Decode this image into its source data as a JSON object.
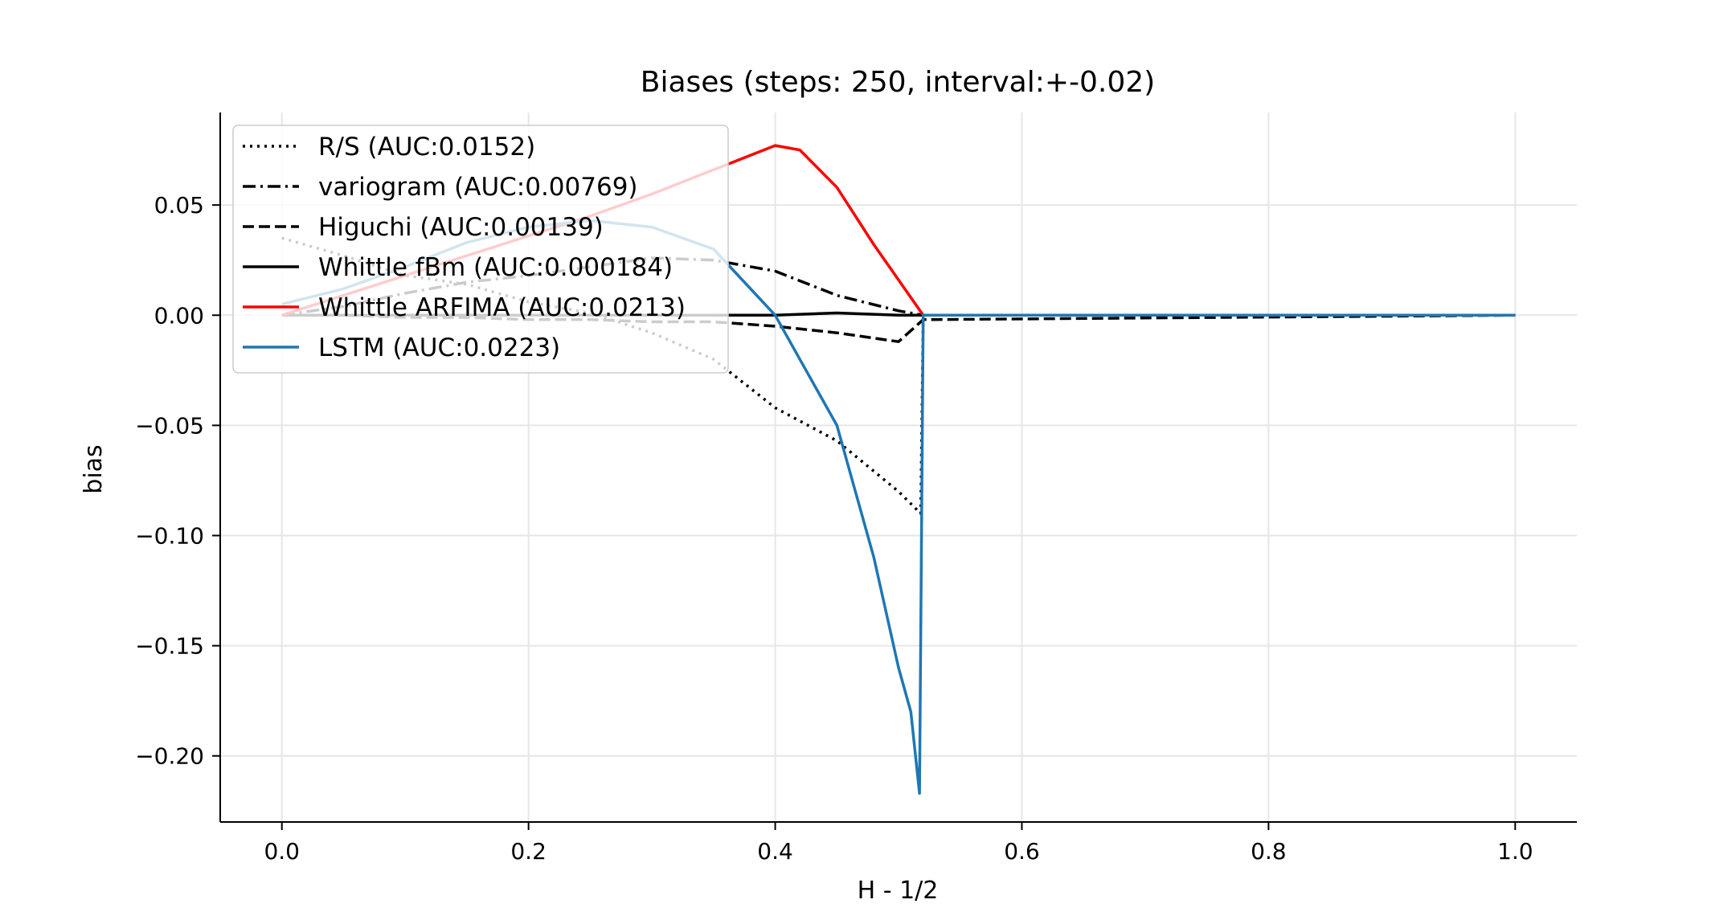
{
  "chart_data": {
    "type": "line",
    "title": "Biases (steps: 250, interval:+-0.02)",
    "xlabel": "H - 1/2",
    "ylabel": "bias",
    "xlim": [
      -0.05,
      1.05
    ],
    "ylim": [
      -0.23,
      0.092
    ],
    "xticks": [
      0.0,
      0.2,
      0.4,
      0.6,
      0.8,
      1.0
    ],
    "xtick_labels": [
      "0.0",
      "0.2",
      "0.4",
      "0.6",
      "0.8",
      "1.0"
    ],
    "yticks": [
      0.05,
      0.0,
      -0.05,
      -0.1,
      -0.15,
      -0.2
    ],
    "ytick_labels": [
      "0.05",
      "0.00",
      "−0.05",
      "−0.10",
      "−0.15",
      "−0.20"
    ],
    "grid": true,
    "legend_position": "upper-left",
    "series": [
      {
        "name": "R/S (AUC:0.0152)",
        "color": "#000000",
        "linestyle": "dotted",
        "x": [
          0.0,
          0.05,
          0.1,
          0.15,
          0.2,
          0.25,
          0.3,
          0.35,
          0.4,
          0.45,
          0.5,
          0.518,
          0.52,
          1.0
        ],
        "y": [
          0.035,
          0.027,
          0.018,
          0.014,
          0.006,
          0.001,
          -0.008,
          -0.02,
          -0.042,
          -0.057,
          -0.08,
          -0.09,
          0.0,
          0.0
        ]
      },
      {
        "name": "variogram (AUC:0.00769)",
        "color": "#000000",
        "linestyle": "dashdot",
        "x": [
          0.0,
          0.05,
          0.1,
          0.15,
          0.2,
          0.25,
          0.3,
          0.35,
          0.4,
          0.45,
          0.5,
          0.52,
          1.0
        ],
        "y": [
          0.0,
          0.004,
          0.01,
          0.015,
          0.018,
          0.022,
          0.026,
          0.025,
          0.02,
          0.009,
          0.002,
          0.0,
          0.0
        ]
      },
      {
        "name": "Higuchi (AUC:0.00139)",
        "color": "#000000",
        "linestyle": "dashed",
        "x": [
          0.0,
          0.05,
          0.1,
          0.15,
          0.2,
          0.25,
          0.3,
          0.35,
          0.4,
          0.45,
          0.5,
          0.52,
          1.0
        ],
        "y": [
          0.0,
          0.0,
          -0.001,
          -0.001,
          -0.002,
          -0.002,
          -0.003,
          -0.003,
          -0.005,
          -0.008,
          -0.012,
          -0.002,
          0.0
        ]
      },
      {
        "name": "Whittle fBm (AUC:0.000184)",
        "color": "#000000",
        "linestyle": "solid",
        "x": [
          0.0,
          0.1,
          0.2,
          0.3,
          0.4,
          0.45,
          0.5,
          0.52,
          1.0
        ],
        "y": [
          0.0,
          0.0,
          0.0,
          0.0,
          0.0,
          0.001,
          0.0,
          0.0,
          0.0
        ]
      },
      {
        "name": "Whittle ARFIMA (AUC:0.0213)",
        "color": "#ff0000",
        "linestyle": "solid",
        "x": [
          0.0,
          0.05,
          0.1,
          0.15,
          0.2,
          0.25,
          0.3,
          0.35,
          0.4,
          0.42,
          0.45,
          0.48,
          0.5,
          0.52
        ],
        "y": [
          0.0,
          0.009,
          0.018,
          0.027,
          0.036,
          0.045,
          0.055,
          0.066,
          0.077,
          0.075,
          0.058,
          0.032,
          0.016,
          0.0
        ]
      },
      {
        "name": "LSTM (AUC:0.0223)",
        "color": "#1f77b4",
        "linestyle": "solid",
        "x": [
          0.0,
          0.05,
          0.1,
          0.15,
          0.2,
          0.25,
          0.3,
          0.35,
          0.4,
          0.45,
          0.48,
          0.5,
          0.51,
          0.517,
          0.52,
          0.55,
          0.6,
          0.7,
          0.8,
          0.9,
          1.0
        ],
        "y": [
          0.005,
          0.012,
          0.022,
          0.033,
          0.04,
          0.043,
          0.04,
          0.03,
          0.0,
          -0.05,
          -0.11,
          -0.16,
          -0.18,
          -0.217,
          0.0,
          0.0,
          0.0,
          0.0,
          0.0,
          0.0,
          0.0
        ]
      }
    ]
  }
}
